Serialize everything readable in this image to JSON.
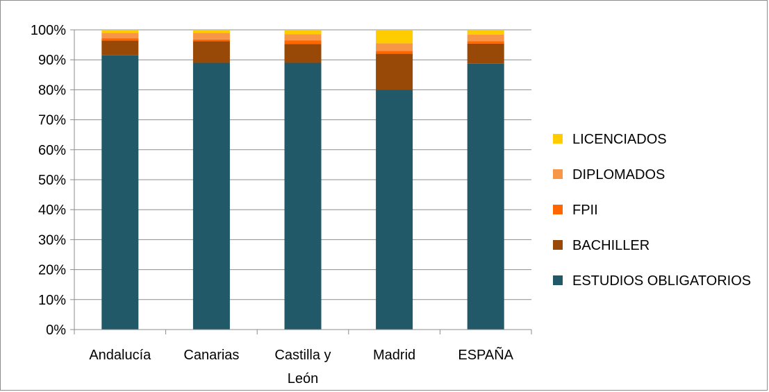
{
  "chart_data": {
    "type": "bar",
    "stacked": true,
    "percent_scale": true,
    "categories": [
      [
        "Andalucía"
      ],
      [
        "Canarias"
      ],
      [
        "Castilla y",
        "León"
      ],
      [
        "Madrid"
      ],
      [
        "ESPAÑA"
      ]
    ],
    "series": [
      {
        "name": "ESTUDIOS OBLIGATORIOS",
        "color": "#215968",
        "values": [
          91.5,
          89,
          89,
          80,
          88.7
        ]
      },
      {
        "name": "BACHILLER",
        "color": "#984807",
        "values": [
          4.9,
          7.2,
          6.3,
          12,
          6.7
        ]
      },
      {
        "name": "FPII",
        "color": "#ff6600",
        "values": [
          0.8,
          0.6,
          1.2,
          1.0,
          0.8
        ]
      },
      {
        "name": "DIPLOMADOS",
        "color": "#f79646",
        "values": [
          1.8,
          2.2,
          2.0,
          2.5,
          2.2
        ]
      },
      {
        "name": "LICENCIADOS",
        "color": "#ffcc00",
        "values": [
          1.0,
          1.0,
          1.5,
          4.5,
          1.6
        ]
      }
    ],
    "yticks": [
      "0%",
      "10%",
      "20%",
      "30%",
      "40%",
      "50%",
      "60%",
      "70%",
      "80%",
      "90%",
      "100%"
    ],
    "ylim": [
      0,
      100
    ],
    "grid": true,
    "legend_position": "right",
    "legend_order": "reversed"
  }
}
